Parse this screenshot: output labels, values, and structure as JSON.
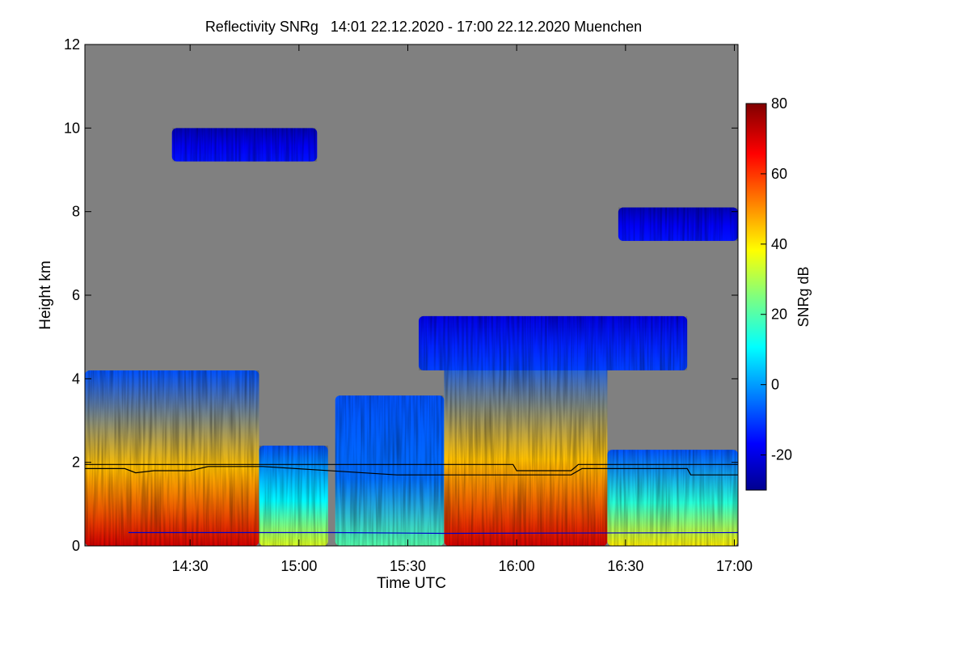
{
  "chart_data": {
    "type": "heatmap",
    "title": "Reflectivity SNRg   14:01 22.12.2020 - 17:00 22.12.2020 Muenchen",
    "xlabel": "Time UTC",
    "ylabel": "Height km",
    "x_range": [
      "14:01",
      "17:01"
    ],
    "x_ticks": [
      "14:30",
      "15:00",
      "15:30",
      "16:00",
      "16:30",
      "17:00"
    ],
    "ylim": [
      0,
      12
    ],
    "y_ticks": [
      0,
      2,
      4,
      6,
      8,
      10,
      12
    ],
    "colorbar": {
      "label": "SNRg dB",
      "range": [
        -30,
        80
      ],
      "ticks": [
        -20,
        0,
        20,
        40,
        60,
        80
      ],
      "colormap": "jet"
    },
    "background_color": "#808080",
    "regions": [
      {
        "name": "low echo 14:01-14:49",
        "x0": "14:01",
        "x1": "14:49",
        "top_km": 4.2,
        "peak_db": 70
      },
      {
        "name": "thin echo 14:49-15:08",
        "x0": "14:49",
        "x1": "15:08",
        "top_km": 2.4,
        "peak_db": 35
      },
      {
        "name": "fall streak 15:10-15:40",
        "x0": "15:10",
        "x1": "15:40",
        "top_km": 3.6,
        "peak_db": 20
      },
      {
        "name": "low echo 15:40-16:25",
        "x0": "15:40",
        "x1": "16:25",
        "top_km": 4.6,
        "peak_db": 70
      },
      {
        "name": "low echo 16:25-17:01",
        "x0": "16:25",
        "x1": "17:01",
        "top_km": 2.3,
        "peak_db": 40
      },
      {
        "name": "mid cloud 15:33-16:47",
        "x0": "15:33",
        "x1": "16:47",
        "base_km": 4.2,
        "top_km": 5.5,
        "peak_db": -10
      },
      {
        "name": "upper cloud 16:28-17:01",
        "x0": "16:28",
        "x1": "17:01",
        "base_km": 7.3,
        "top_km": 8.1,
        "peak_db": -15
      },
      {
        "name": "cirrus 14:25-15:05",
        "x0": "14:25",
        "x1": "15:05",
        "base_km": 9.2,
        "top_km": 10.0,
        "peak_db": -15
      }
    ],
    "lines": [
      {
        "name": "upper line",
        "points": [
          [
            "14:01",
            1.95
          ],
          [
            "15:47",
            1.95
          ],
          [
            "15:59",
            1.95
          ],
          [
            "16:00",
            1.8
          ],
          [
            "16:15",
            1.8
          ],
          [
            "16:17",
            1.95
          ],
          [
            "17:01",
            1.95
          ]
        ]
      },
      {
        "name": "lower line",
        "points": [
          [
            "14:01",
            1.85
          ],
          [
            "14:12",
            1.85
          ],
          [
            "14:15",
            1.75
          ],
          [
            "14:20",
            1.8
          ],
          [
            "14:30",
            1.8
          ],
          [
            "14:35",
            1.9
          ],
          [
            "14:50",
            1.9
          ],
          [
            "15:27",
            1.7
          ],
          [
            "16:00",
            1.7
          ],
          [
            "16:15",
            1.7
          ],
          [
            "16:18",
            1.85
          ],
          [
            "16:47",
            1.85
          ],
          [
            "16:48",
            1.7
          ],
          [
            "17:01",
            1.7
          ]
        ]
      },
      {
        "name": "ground line",
        "points": [
          [
            "14:13",
            0.32
          ],
          [
            "15:10",
            0.32
          ],
          [
            "15:40",
            0.3
          ],
          [
            "17:01",
            0.32
          ]
        ]
      }
    ]
  }
}
